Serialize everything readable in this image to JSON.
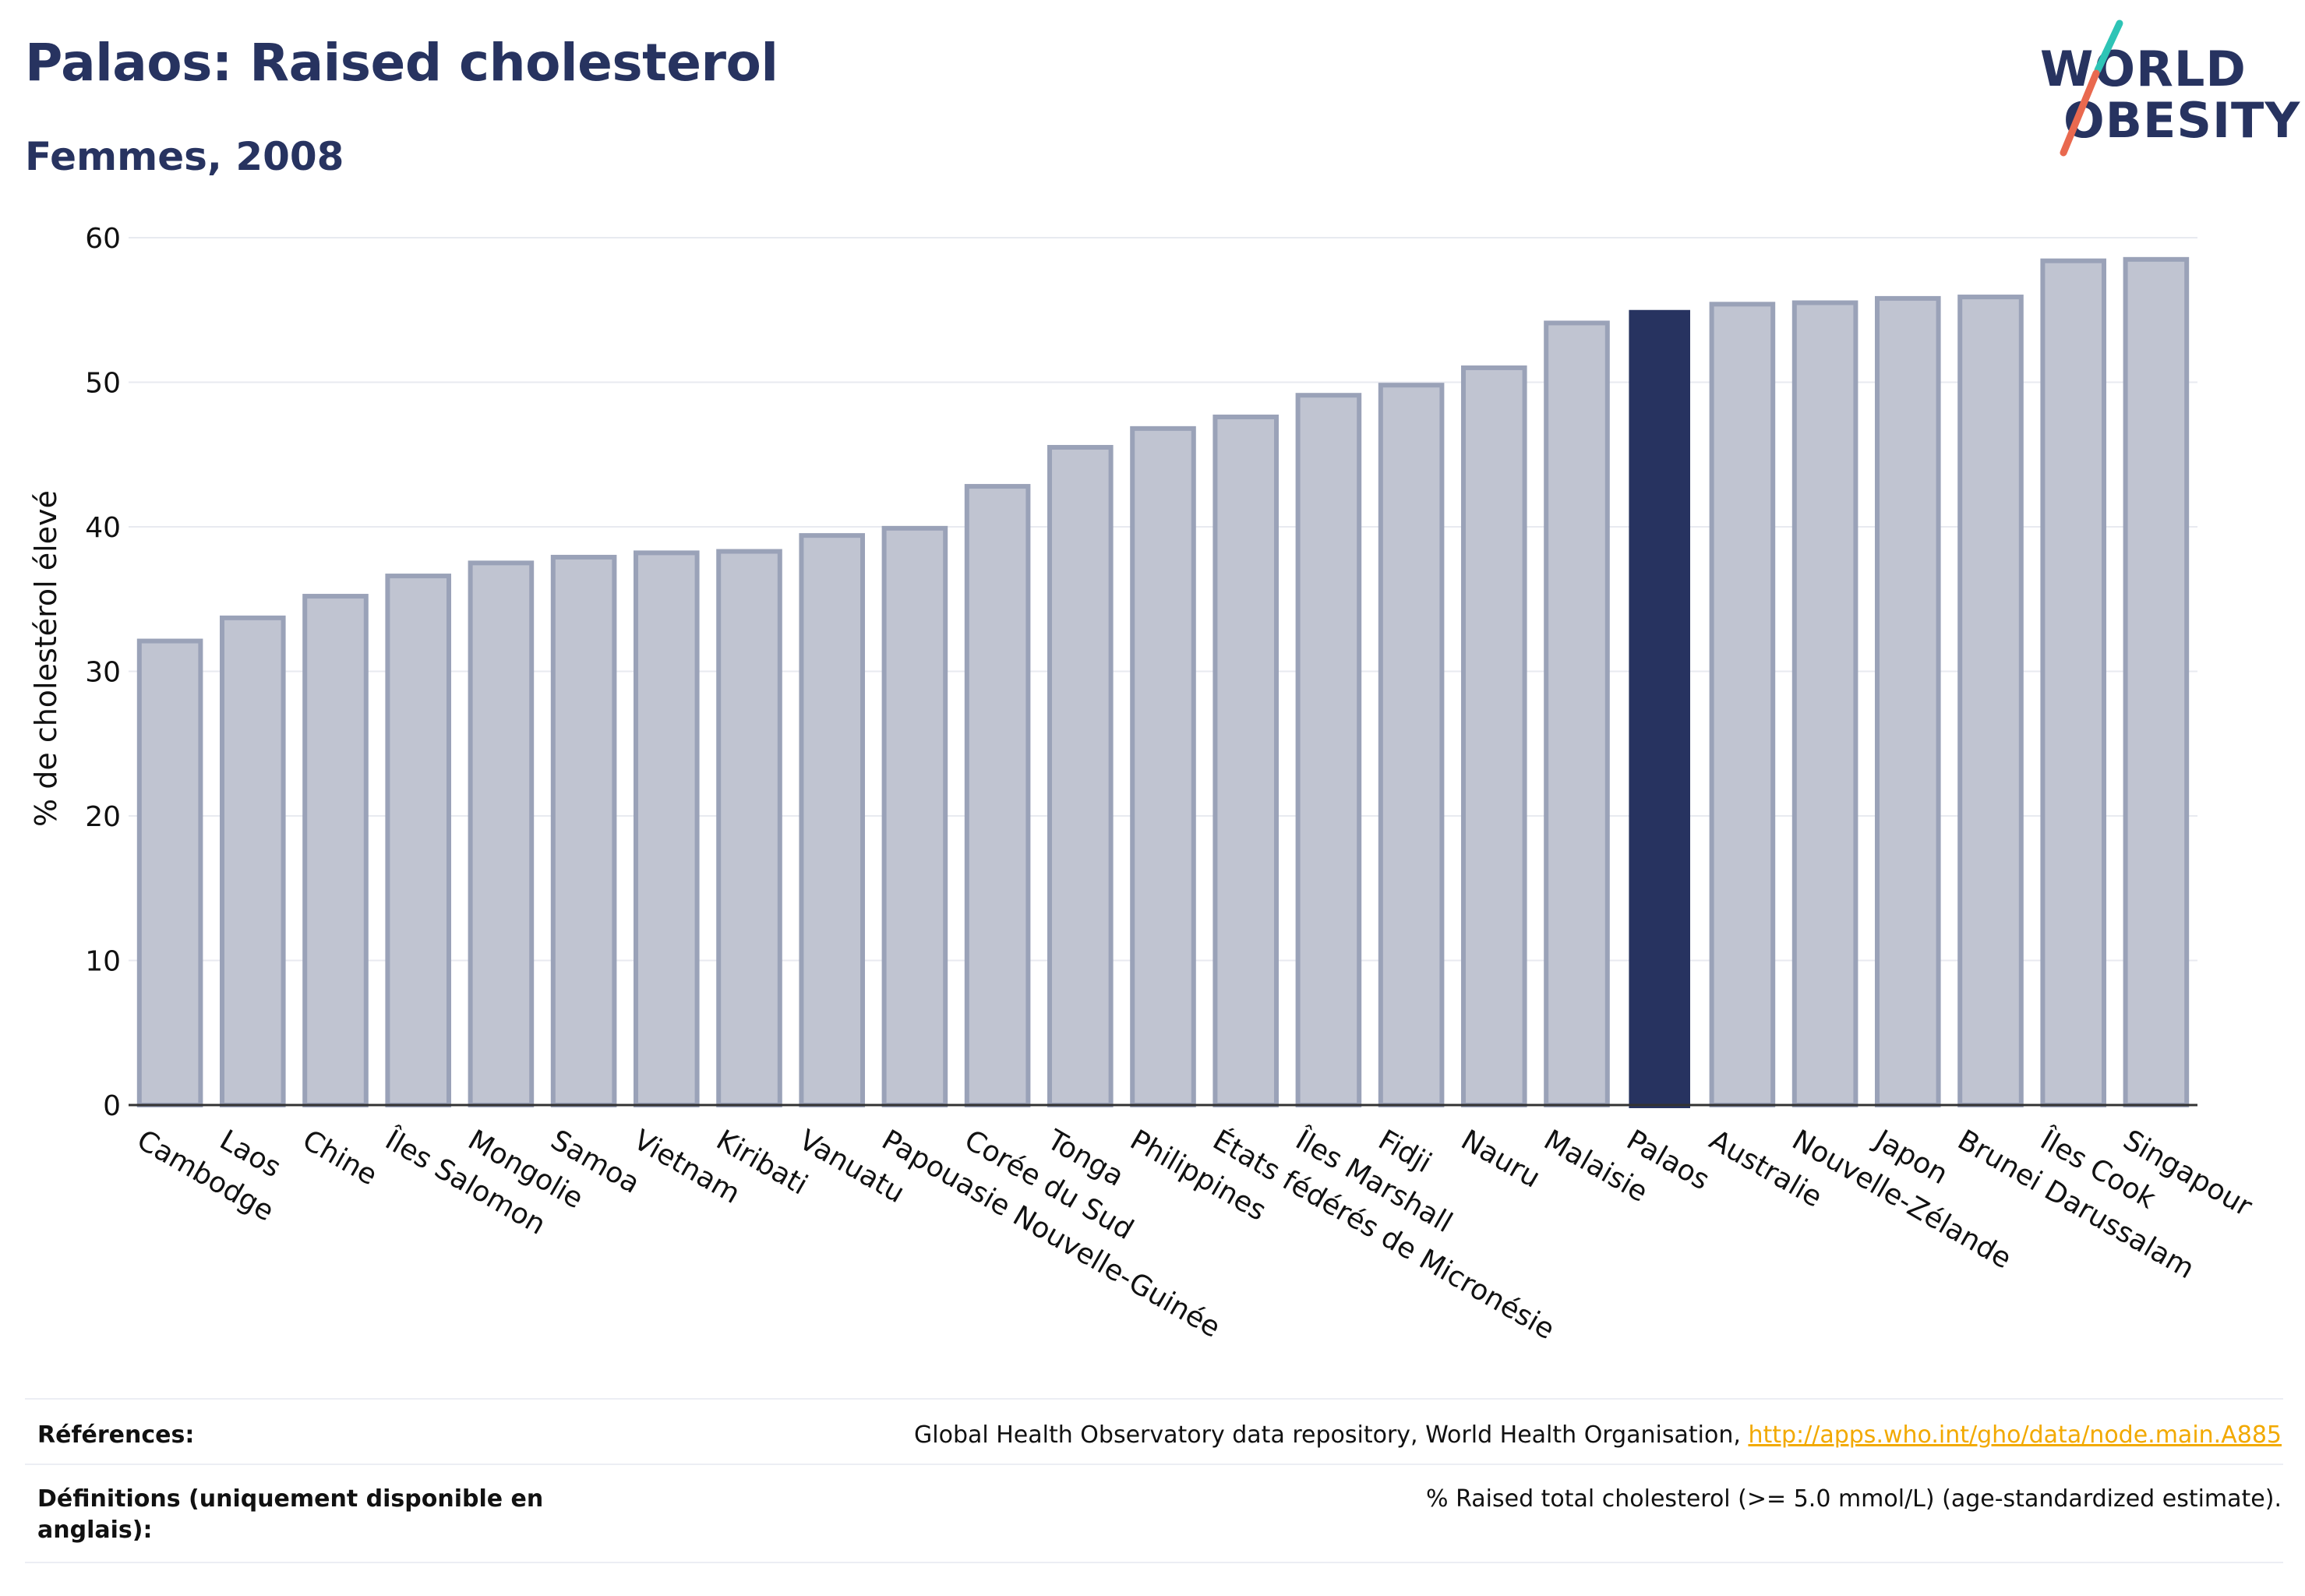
{
  "header": {
    "title": "Palaos: Raised cholesterol",
    "subtitle": "Femmes, 2008"
  },
  "logo": {
    "line1": "WORLD",
    "line2": "OBESITY",
    "slash_colors": [
      "#2ec4b6",
      "#e9694f"
    ]
  },
  "colors": {
    "bar_default": "#c0c4d1",
    "bar_default_border": "#9aa2b8",
    "bar_highlight": "#273360",
    "text_dark": "#273360",
    "link": "#f2a900"
  },
  "chart_data": {
    "type": "bar",
    "ylabel": "% de cholestérol élevé",
    "xlabel": "",
    "ylim": [
      0,
      60
    ],
    "yticks": [
      0,
      10,
      20,
      30,
      40,
      50,
      60
    ],
    "grid": true,
    "highlight": "Palaos",
    "categories": [
      "Cambodge",
      "Laos",
      "Chine",
      "Îles Salomon",
      "Mongolie",
      "Samoa",
      "Vietnam",
      "Kiribati",
      "Vanuatu",
      "Papouasie Nouvelle-Guinée",
      "Corée du Sud",
      "Tonga",
      "Philippines",
      "États fédérés de Micronésie",
      "Îles Marshall",
      "Fidji",
      "Nauru",
      "Malaisie",
      "Palaos",
      "Australie",
      "Nouvelle-Zélande",
      "Japon",
      "Brunei Darussalam",
      "Îles Cook",
      "Singapour"
    ],
    "values": [
      32.1,
      33.7,
      35.2,
      36.6,
      37.5,
      37.9,
      38.2,
      38.3,
      39.4,
      39.9,
      42.8,
      45.5,
      46.8,
      47.6,
      49.1,
      49.8,
      51.0,
      54.1,
      55.0,
      55.4,
      55.5,
      55.8,
      55.9,
      58.4,
      58.5
    ]
  },
  "footer": {
    "references_label": "Références:",
    "references_text": "Global Health Observatory data repository, World Health Organisation, ",
    "references_link": "http://apps.who.int/gho/data/node.main.A885",
    "definitions_label": "Définitions (uniquement disponible en anglais):",
    "definitions_text": "% Raised total cholesterol (>= 5.0 mmol/L) (age-standardized estimate)."
  }
}
